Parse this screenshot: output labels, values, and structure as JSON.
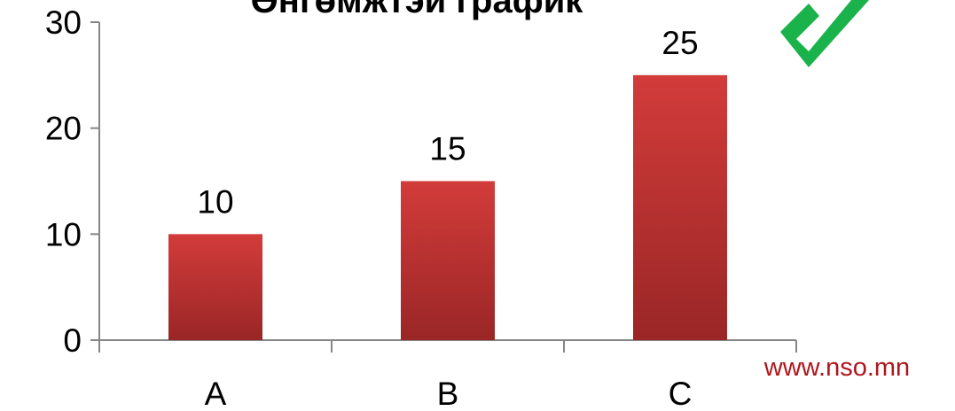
{
  "chart_data": {
    "type": "bar",
    "title": "Өнгөмжтэй график",
    "categories": [
      "A",
      "B",
      "C"
    ],
    "values": [
      10,
      15,
      25
    ],
    "data_labels": [
      "10",
      "15",
      "25"
    ],
    "y_ticks": [
      "0",
      "10",
      "20",
      "30"
    ],
    "ylim": [
      0,
      30
    ],
    "xlabel": "",
    "ylabel": "",
    "grid": false,
    "legend": "none",
    "bar_color_top": "#d23c3a",
    "bar_color_bottom": "#9a2626"
  },
  "checkmark": {
    "icon": "checkmark-icon",
    "color": "#1ab24b"
  },
  "watermark": {
    "text": "www.nso.mn",
    "color": "#b0161d"
  }
}
